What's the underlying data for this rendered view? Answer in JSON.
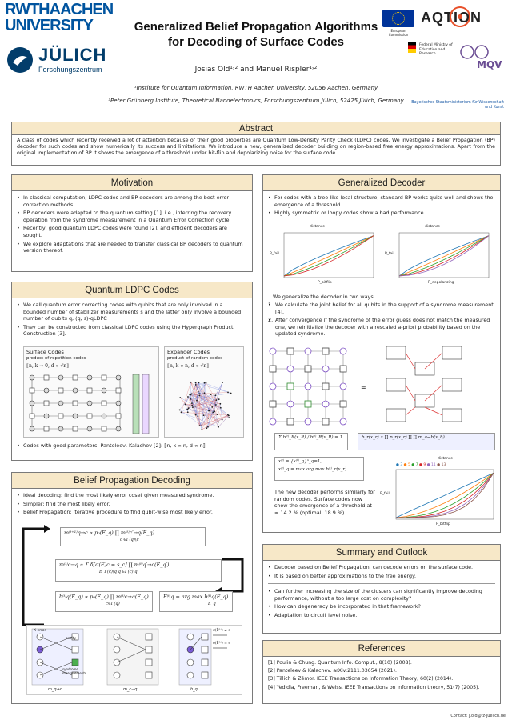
{
  "header": {
    "rwth_line1": "RWTHAACHEN",
    "rwth_line2": "UNIVERSITY",
    "julich_name": "JÜLICH",
    "julich_sub": "Forschungszentrum",
    "title_line1": "Generalized Belief Propagation Algorithms",
    "title_line2": "for Decoding of Surface Codes",
    "authors": "Josias Old¹˒² and Manuel Rispler¹˒²",
    "affiliation1": "¹Institute for Quantum Information, RWTH Aachen University, 52056 Aachen, Germany",
    "affiliation2": "²Peter Grünberg Institute, Theoretical Nanoelectronics, Forschungszentrum Jülich, 52425 Jülich, Germany",
    "eu_caption": "European Commission",
    "aqtion_logo": "AQTION",
    "bmbf_caption": "Federal Ministry of Education and Research",
    "mqv_logo": "MQV",
    "bavaria_caption": "Bayerisches Staatsministerium für Wissenschaft und Kunst"
  },
  "abstract": {
    "heading": "Abstract",
    "text": "A class of codes which recently received a lot of attention because of their good properties are Quantum Low-Density Parity Check (LDPC) codes. We investigate a Belief Propagation (BP) decoder for such codes and show numerically its success and limitations. We introduce a new, generalized decoder building on region-based free energy approximations. Apart from the original implementation of BP it shows the emergence of a threshold under bit-flip and depolarizing noise for the surface code."
  },
  "motivation": {
    "heading": "Motivation",
    "items": [
      "In classical computation, LDPC codes and BP decoders are among the best error correction methods.",
      "BP decoders were adapted to the quantum setting [1], i.e., inferring the recovery operation from the syndrome measurement in a Quantum Error Correction cycle.",
      "Recently, good quantum LDPC codes were found [2], and efficient decoders are sought.",
      "We explore adaptations that are needed to transfer classical BP decoders to quantum version thereof."
    ]
  },
  "qldpc": {
    "heading": "Quantum LDPC Codes",
    "items": [
      "We call quantum error correcting codes with qubits that are only involved in a bounded number of stabilizer measurements s and the latter only involve a bounded number of qubits q, (q, s)-qLDPC",
      "They can be constructed from classical LDPC codes using the Hypergraph Product Construction [3]."
    ],
    "surface_title": "Surface Codes",
    "surface_sub": "product of repetition codes",
    "surface_params": "⟦n, k → 0, d ∝ √n⟧",
    "expander_title": "Expander Codes",
    "expander_sub": "product of random codes",
    "expander_params": "⟦n, k ∝ n, d ∝ √n⟧",
    "good_params": "Codes with good parameters: Panteleev, Kalachev [2]: ⟦n, k ∝ n, d ∝ n⟧"
  },
  "bp": {
    "heading": "Belief Propagation Decoding",
    "items": [
      "Ideal decoding: find the most likely error coset given measured syndrome.",
      "Simpler: find the most likely error.",
      "Belief Propagation: iterative procedure to find qubit-wise most likely error."
    ],
    "eq1": "m⁽ᵗ⁺¹⁾q→c ∝ p₀(E_q) ∏ m⁽ᵗ⁾c′→q(E_q)",
    "eq1_sub": "c′∈Γ(q)\\c",
    "eq2": "m⁽ᵗ⁾c→q ∝ Σ δ[σ(E)c = s_c] ∏ m⁽ᵗ⁾q′→c(E_q′)",
    "eq2_sub": "E_Γ(c)\\q        q′∈Γ(c)\\q",
    "eq3": "b⁽ᵗ⁾q(E_q) ∝ p₀(E_q) ∏ m⁽ᵗ⁾c→q(E_q)",
    "eq3_sub": "c∈Γ(q)",
    "eq4": "Ê⁽ᵗ⁾q = arg max b⁽ᵗ⁾q(E_q)",
    "eq4_sub": "E_q",
    "diag_x_error": "X error",
    "diag_parity": "parity",
    "diag_syndrome": "syndrome measurements",
    "diag_check1": "σ(Ê⁽ᵗ⁾) ≠ s",
    "diag_check2": "σ(Ê⁽ᵗ⁾) = s",
    "diag_label1": "m_q→c",
    "diag_label2": "m_c→q",
    "diag_label3": "b_q"
  },
  "gen": {
    "heading": "Generalized Decoder",
    "items": [
      "For codes with a tree-like local structure, standard BP works quite well and shows the emergence of a threshold.",
      "Highly symmetric or loopy codes show a bad performance."
    ],
    "plot1": {
      "top_label": "distance",
      "xlabel": "P_bitflip",
      "ylabel": "P_fail"
    },
    "plot2": {
      "top_label": "distance",
      "xlabel": "P_depolarizing",
      "ylabel": "P_fail"
    },
    "intro": "We generalize the decoder in two ways.",
    "steps": [
      "We calculate the joint belief for all qubits in the support of a syndrome measurement [4].",
      "After convergence if the syndrome of the error guess does not match the measured one, we reinitialize the decoder with a rescaled a-priori probability based on the updated syndrome."
    ],
    "eq_a": "Σ b⁽ᵗ⁾_R(x_R) / b⁽ᵗ⁾_R(x_R) = 1",
    "eq_b": "b_r(x_r) ∝ ∏ p_r(x_r) ∏ ∏ m_a→b(x_b)",
    "eq_c": "x⁽ᵗ⁾ = {x⁽ᵗ⁾_q}ⁿ_q=1,",
    "eq_d": "x⁽ᵗ⁾_q = max   arg max b⁽ᵗ⁾_r(x_r)",
    "plot3_top": "distance",
    "plot3_legend": [
      "3",
      "5",
      "7",
      "9",
      "11",
      "13"
    ],
    "plot3_xlabel": "P_bitflip",
    "plot3_ylabel": "P_fail",
    "result": "The new decoder performs similarly for random codes. Surface codes now show the emergence of a threshold at ≈ 14.2 % (optimal: 18.9 %)."
  },
  "summary": {
    "heading": "Summary and Outlook",
    "items1": [
      "Decoder based on Belief Propagation, can decode errors on the surface code.",
      "It is based on better approximations to the free energy."
    ],
    "items2": [
      "Can further increasing the size of the clusters can significantly improve decoding performance, without a too large cost on complexity?",
      "How can degeneracy be incorporated in that framework?",
      "Adaptation to circuit level noise."
    ]
  },
  "refs": {
    "heading": "References",
    "items": [
      "[1] Poulin & Chung. Quantum Info. Comput., 8(10) (2008).",
      "[2] Panteleev & Kalachev. arXiv:2111.03654 (2021).",
      "[3] Tillich & Zémor. IEEE Transactions on Information Theory, 60(2) (2014).",
      "[4] Yedidia, Freeman, & Weiss. IEEE Transactions on information theory, 51(7) (2005)."
    ]
  },
  "contact": "Contact: j.old@fz-juelich.de",
  "colors": {
    "header_fill": "#f7e8c8",
    "rwth_blue": "#00549f",
    "julich_blue": "#023d6b"
  }
}
